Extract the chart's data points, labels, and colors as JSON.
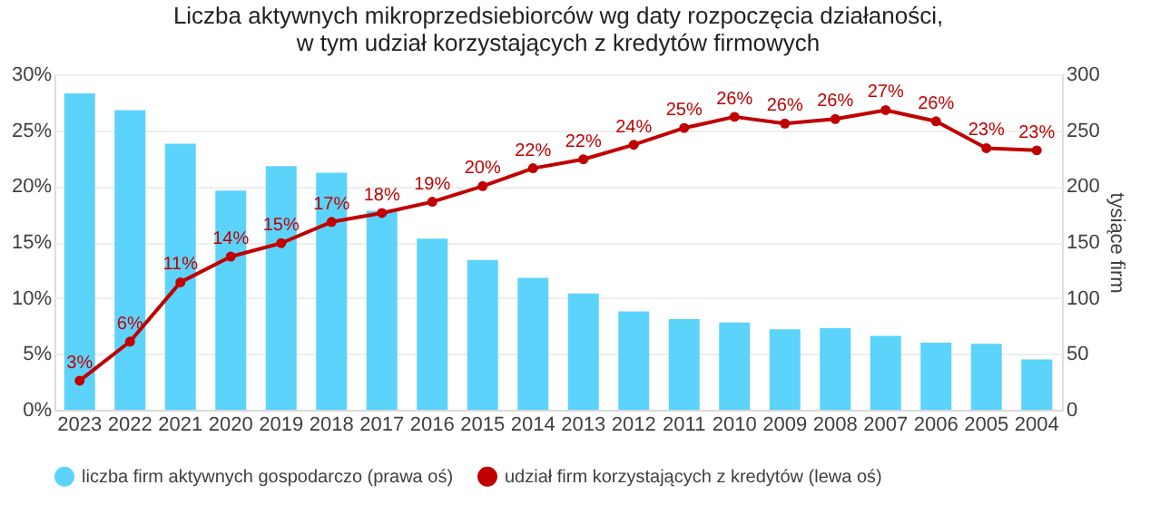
{
  "chart_data": {
    "type": "bar",
    "title": "Liczba aktywnych mikroprzedsiebiorców wg daty rozpoczęcia działaności,",
    "subtitle": "w tym udział korzystających z kredytów firmowych",
    "categories": [
      "2023",
      "2022",
      "2021",
      "2020",
      "2019",
      "2018",
      "2017",
      "2016",
      "2015",
      "2014",
      "2013",
      "2012",
      "2011",
      "2010",
      "2009",
      "2008",
      "2007",
      "2006",
      "2005",
      "2004"
    ],
    "series": [
      {
        "name": "liczba firm aktywnych gospodarczo (prawa oś)",
        "axis": "y2",
        "color": "#5bd3fb",
        "values": [
          283,
          268,
          238,
          196,
          218,
          212,
          178,
          153,
          134,
          118,
          104,
          88,
          81,
          78,
          72,
          73,
          66,
          60,
          59,
          45
        ]
      },
      {
        "name": "udział firm korzystających z kredytów (lewa oś)",
        "type": "line",
        "color": "#c00000",
        "marker": "circle",
        "line_style": "solid",
        "values": [
          2.6,
          6.1,
          11.4,
          13.7,
          14.9,
          16.8,
          17.6,
          18.6,
          20.0,
          21.6,
          22.4,
          23.7,
          25.2,
          26.2,
          25.6,
          26.0,
          26.8,
          25.8,
          23.4,
          23.2
        ],
        "value_labels": [
          "3%",
          "6%",
          "11%",
          "14%",
          "15%",
          "17%",
          "18%",
          "19%",
          "20%",
          "22%",
          "22%",
          "24%",
          "25%",
          "26%",
          "26%",
          "26%",
          "27%",
          "26%",
          "23%",
          "23%"
        ]
      }
    ],
    "ylim": [
      0,
      30
    ],
    "yticks": [
      {
        "value": 0,
        "label": "0%"
      },
      {
        "value": 5,
        "label": "5%"
      },
      {
        "value": 10,
        "label": "10%"
      },
      {
        "value": 15,
        "label": "15%"
      },
      {
        "value": 20,
        "label": "20%"
      },
      {
        "value": 25,
        "label": "25%"
      },
      {
        "value": 30,
        "label": "30%"
      }
    ],
    "y2lim": [
      0,
      300
    ],
    "y2ticks": [
      0,
      50,
      100,
      150,
      200,
      250,
      300
    ],
    "y2label": "tysiące firm",
    "grid": "y",
    "legend": "bottom"
  }
}
